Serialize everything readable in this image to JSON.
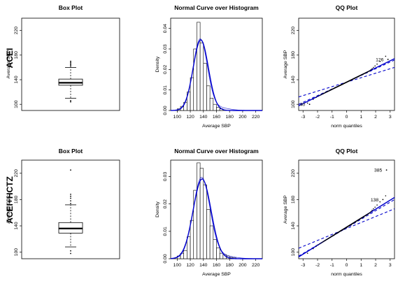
{
  "rows": [
    {
      "label": "ACEI"
    },
    {
      "label": "ACEI+HCTZ"
    }
  ],
  "panel_titles": [
    "Box Plot",
    "Normal Curve over Histogram",
    "QQ Plot"
  ],
  "colors": {
    "curve": "#0000cc",
    "ink": "#000000"
  },
  "chart_data": [
    {
      "type": "box",
      "row": "ACEI",
      "title": "Box Plot",
      "ylabel": "Average SBP",
      "ylim": [
        90,
        240
      ],
      "yticks": [
        100,
        140,
        180,
        220
      ],
      "stats": {
        "min": 110,
        "q1": 131,
        "median": 135,
        "q3": 141,
        "max": 160
      },
      "outliers": [
        104,
        106,
        162,
        164,
        166,
        168,
        170
      ]
    },
    {
      "type": "histogram",
      "row": "ACEI",
      "title": "Normal Curve over Histogram",
      "xlabel": "Average SBP",
      "ylabel": "Density",
      "xlim": [
        90,
        230
      ],
      "ylim": [
        0,
        0.045
      ],
      "xticks": [
        100,
        120,
        140,
        160,
        180,
        200,
        220
      ],
      "yticks": [
        0.0,
        0.01,
        0.02,
        0.03,
        0.04
      ],
      "bin_edges": [
        100,
        105,
        110,
        115,
        120,
        125,
        130,
        135,
        140,
        145,
        150,
        155,
        160,
        165,
        170
      ],
      "values": [
        0.0008,
        0.002,
        0.004,
        0.009,
        0.016,
        0.03,
        0.043,
        0.033,
        0.023,
        0.012,
        0.006,
        0.003,
        0.0015,
        0.0008
      ],
      "normal_fit": {
        "mean": 136,
        "sd": 11.6
      }
    },
    {
      "type": "scatter",
      "row": "ACEI",
      "title": "QQ Plot",
      "xlabel": "norm quantiles",
      "ylabel": "Average SBP",
      "xlim": [
        -3.3,
        3.3
      ],
      "ylim": [
        90,
        240
      ],
      "xticks": [
        -3,
        -2,
        -1,
        0,
        1,
        2,
        3
      ],
      "yticks": [
        100,
        140,
        180,
        220
      ],
      "annotations": [
        {
          "text": "126",
          "x": 2.55,
          "y": 173
        },
        {
          "text": "40",
          "x": -2.85,
          "y": 100
        }
      ],
      "reference_line": {
        "intercept": 136,
        "slope": 11.6
      },
      "envelope": {
        "low": [
          112,
          100
        ],
        "high": [
          160,
          172
        ]
      }
    },
    {
      "type": "box",
      "row": "ACEI+HCTZ",
      "title": "Box Plot",
      "ylabel": "Average SBP",
      "ylim": [
        90,
        240
      ],
      "yticks": [
        100,
        140,
        180,
        220
      ],
      "stats": {
        "min": 108,
        "q1": 129,
        "median": 136,
        "q3": 145,
        "max": 172
      },
      "outliers": [
        98,
        102,
        174,
        178,
        182,
        185,
        188,
        225
      ]
    },
    {
      "type": "histogram",
      "row": "ACEI+HCTZ",
      "title": "Normal Curve over Histogram",
      "xlabel": "Average SBP",
      "ylabel": "Density",
      "xlim": [
        90,
        230
      ],
      "ylim": [
        0,
        0.036
      ],
      "xticks": [
        100,
        120,
        140,
        160,
        180,
        200,
        220
      ],
      "yticks": [
        0.0,
        0.01,
        0.02,
        0.03
      ],
      "bin_edges": [
        100,
        105,
        110,
        115,
        120,
        125,
        130,
        135,
        140,
        145,
        150,
        155,
        160,
        165,
        170,
        175,
        180,
        185,
        190
      ],
      "values": [
        0.001,
        0.002,
        0.003,
        0.008,
        0.014,
        0.025,
        0.035,
        0.033,
        0.027,
        0.018,
        0.012,
        0.007,
        0.004,
        0.002,
        0.0015,
        0.001,
        0.0005,
        0.0003
      ],
      "normal_fit": {
        "mean": 138,
        "sd": 13.7
      }
    },
    {
      "type": "scatter",
      "row": "ACEI+HCTZ",
      "title": "QQ Plot",
      "xlabel": "norm quantiles",
      "ylabel": "Average SBP",
      "xlim": [
        -3.3,
        3.3
      ],
      "ylim": [
        90,
        240
      ],
      "xticks": [
        -3,
        -2,
        -1,
        0,
        1,
        2,
        3
      ],
      "yticks": [
        100,
        140,
        180,
        220
      ],
      "annotations": [
        {
          "text": "385",
          "x": 2.45,
          "y": 225
        },
        {
          "text": "138",
          "x": 2.2,
          "y": 180
        }
      ],
      "reference_line": {
        "intercept": 138,
        "slope": 13.7
      },
      "envelope": {
        "low": [
          106,
          94
        ],
        "high": [
          166,
          180
        ]
      }
    }
  ]
}
